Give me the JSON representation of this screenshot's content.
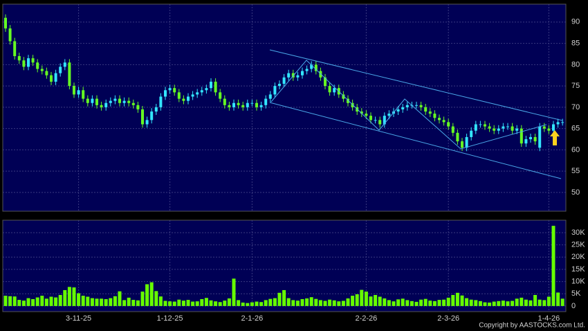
{
  "chart_data": [
    {
      "type": "candlestick",
      "up_color": "#33e6ff",
      "down_color": "#66ff22",
      "ylim": [
        45.6,
        94.2
      ],
      "yticks": [
        50,
        55,
        60,
        65,
        70,
        75,
        80,
        85,
        90
      ],
      "grid": true,
      "open": [
        91,
        88.5,
        85.5,
        82,
        81,
        79.5,
        81.5,
        80.5,
        79,
        78.5,
        77.5,
        76,
        78,
        79.5,
        80.5,
        75,
        73,
        74,
        72,
        71,
        72,
        70.5,
        70,
        71,
        71.5,
        72,
        71,
        71.5,
        71,
        70.5,
        69.5,
        66,
        67,
        69,
        70,
        72.5,
        74,
        74.5,
        73.5,
        72,
        71.5,
        72.5,
        73,
        73.5,
        74,
        74.5,
        76,
        73.5,
        72,
        70.5,
        70,
        71,
        70.5,
        70,
        71,
        71,
        70,
        70.5,
        72,
        73,
        75,
        75.5,
        77,
        78,
        77,
        77.5,
        78.5,
        79,
        80,
        78.5,
        77,
        75,
        73.5,
        74.5,
        73,
        72,
        71,
        70,
        69,
        68.5,
        68,
        67,
        67,
        66,
        68,
        68.5,
        69,
        69.5,
        70,
        70.5,
        70.5,
        70.5,
        70,
        69,
        68.5,
        67.5,
        67,
        66.5,
        65.5,
        64,
        62,
        60.5,
        63,
        64.5,
        66,
        66,
        65.5,
        65,
        64.5,
        65,
        65.5,
        65.5,
        64.5,
        65,
        61.5,
        62.5,
        63,
        60.5,
        65.5,
        65,
        64.5,
        66,
        66.5
      ],
      "high": [
        91.8,
        89.3,
        86.3,
        82.8,
        81.8,
        82.3,
        82.3,
        81.3,
        79.8,
        79.3,
        78.3,
        78.8,
        80.3,
        81.3,
        81.3,
        75.8,
        74.8,
        74.8,
        72.8,
        72.8,
        72.8,
        71.3,
        71.8,
        72.3,
        72.8,
        72.8,
        72.3,
        72.3,
        71.8,
        71.3,
        70.3,
        67.8,
        69.8,
        70.8,
        73.3,
        74.8,
        75.3,
        75.3,
        74.3,
        72.8,
        73.3,
        73.8,
        74.3,
        74.8,
        75.3,
        76.8,
        76.8,
        74.3,
        72.8,
        71.3,
        71.8,
        71.8,
        71.3,
        71.8,
        71.8,
        71.8,
        71.3,
        72.8,
        73.8,
        75.8,
        76.3,
        77.8,
        78.8,
        78.8,
        78.3,
        79.3,
        79.8,
        80.8,
        80.8,
        79.3,
        77.8,
        75.8,
        75.3,
        75.3,
        73.8,
        72.8,
        71.8,
        70.8,
        69.8,
        69.3,
        68.8,
        67.8,
        67.8,
        68.8,
        69.3,
        69.8,
        70.3,
        70.8,
        71.3,
        71.3,
        71.3,
        71.3,
        70.8,
        69.8,
        69.3,
        68.3,
        67.8,
        67.3,
        66.3,
        64.8,
        62.8,
        63.8,
        65.3,
        66.8,
        66.8,
        66.8,
        66.3,
        65.8,
        65.8,
        66.3,
        66.3,
        66.3,
        65.8,
        65.8,
        63.3,
        63.8,
        63.8,
        66.3,
        66.3,
        65.8,
        66.8,
        67.3,
        67.3
      ],
      "low": [
        87.7,
        84.7,
        81.2,
        80.2,
        78.7,
        78.7,
        79.7,
        78.2,
        77.7,
        76.7,
        75.2,
        75.2,
        77.2,
        78.7,
        74.2,
        72.2,
        72.2,
        71.2,
        70.2,
        70.2,
        69.7,
        69.2,
        69.2,
        70.2,
        70.7,
        70.2,
        70.2,
        70.2,
        69.7,
        68.7,
        65.2,
        65.2,
        66.2,
        68.2,
        69.2,
        71.7,
        73.2,
        72.7,
        71.2,
        70.7,
        70.7,
        71.7,
        72.2,
        72.7,
        73.2,
        73.7,
        72.7,
        71.2,
        69.7,
        69.2,
        69.2,
        69.7,
        69.2,
        69.2,
        70.2,
        69.2,
        69.2,
        69.7,
        71.2,
        72.2,
        74.2,
        74.7,
        76.2,
        76.2,
        76.2,
        76.7,
        77.7,
        78.2,
        77.7,
        76.2,
        74.2,
        72.7,
        72.7,
        72.2,
        71.2,
        70.2,
        69.2,
        68.2,
        67.7,
        67.2,
        66.2,
        66.2,
        65.2,
        65.2,
        67.2,
        67.7,
        68.2,
        68.7,
        69.2,
        69.7,
        69.7,
        69.2,
        68.2,
        67.7,
        66.7,
        66.2,
        65.7,
        64.7,
        63.2,
        61.2,
        59.7,
        59.7,
        62.2,
        63.7,
        65.2,
        64.7,
        64.2,
        63.7,
        63.7,
        64.2,
        64.7,
        63.7,
        63.7,
        60.7,
        60.7,
        61.7,
        61.2,
        59.7,
        64.2,
        63.7,
        63.7,
        65.2,
        65.7
      ],
      "close": [
        88.5,
        85.5,
        82,
        81,
        79.5,
        81.5,
        80.5,
        79,
        78.5,
        77.5,
        76,
        78,
        79.5,
        80.5,
        75,
        73,
        74,
        72,
        71,
        72,
        70.5,
        70,
        71,
        71.5,
        72,
        71,
        71.5,
        71,
        70.5,
        69.5,
        66,
        67,
        69,
        70,
        72.5,
        74,
        74.5,
        73.5,
        72,
        71.5,
        72.5,
        73,
        73.5,
        74,
        74.5,
        76,
        73.5,
        72,
        70.5,
        70,
        71,
        70.5,
        70,
        71,
        71,
        70,
        70.5,
        72,
        73,
        75,
        75.5,
        77,
        78,
        77,
        77.5,
        78.5,
        79,
        80,
        78.5,
        77,
        75,
        73.5,
        74.5,
        73,
        72,
        71,
        70,
        69,
        68.5,
        68,
        67,
        67,
        66,
        68,
        68.5,
        69,
        69.5,
        70,
        70.5,
        70.5,
        70.5,
        70,
        69,
        68.5,
        67.5,
        67,
        66.5,
        65.5,
        64,
        62,
        60.5,
        63,
        64.5,
        66,
        66,
        65.5,
        65,
        64.5,
        65,
        65.5,
        65.5,
        64.5,
        65,
        61.5,
        62.5,
        63,
        62,
        65.5,
        65,
        64.5,
        66,
        66.5,
        66.5
      ]
    },
    {
      "type": "bar",
      "color": "#66ff00",
      "ylim": [
        -2300,
        35100
      ],
      "yticks": [
        0,
        {
          "value": 5000,
          "label": "5K"
        },
        {
          "value": 10000,
          "label": "10K"
        },
        {
          "value": 15000,
          "label": "15K"
        },
        {
          "value": 20000,
          "label": "20K"
        },
        {
          "value": 25000,
          "label": "25K"
        },
        {
          "value": 30000,
          "label": "30K"
        }
      ],
      "grid": true,
      "categories": [
        null,
        null,
        null,
        null,
        null,
        null,
        null,
        null,
        null,
        null,
        null,
        null,
        null,
        null,
        null,
        null,
        "3-11-25",
        null,
        null,
        null,
        null,
        null,
        null,
        null,
        null,
        null,
        null,
        null,
        null,
        null,
        null,
        null,
        null,
        null,
        null,
        null,
        "1-12-25",
        null,
        null,
        null,
        null,
        null,
        null,
        null,
        null,
        null,
        null,
        null,
        null,
        null,
        null,
        null,
        null,
        null,
        "2-1-26",
        null,
        null,
        null,
        null,
        null,
        null,
        null,
        null,
        null,
        null,
        null,
        null,
        null,
        null,
        null,
        null,
        null,
        null,
        null,
        null,
        null,
        null,
        null,
        null,
        "2-2-26",
        null,
        null,
        null,
        null,
        null,
        null,
        null,
        null,
        null,
        null,
        null,
        null,
        null,
        null,
        null,
        null,
        null,
        "2-3-26",
        null,
        null,
        null,
        null,
        null,
        null,
        null,
        null,
        null,
        null,
        null,
        null,
        null,
        null,
        null,
        null,
        null,
        null,
        null,
        null,
        null,
        "1-4-26",
        null,
        null,
        null
      ],
      "values": [
        4200,
        4000,
        3900,
        2500,
        2200,
        3200,
        2800,
        3500,
        4200,
        3000,
        3800,
        3500,
        4500,
        6500,
        7800,
        7600,
        5200,
        4200,
        3800,
        3200,
        3000,
        3000,
        2800,
        3200,
        4000,
        6000,
        2400,
        3400,
        2500,
        2300,
        5900,
        8900,
        9700,
        6100,
        3900,
        2100,
        1900,
        1800,
        2600,
        2200,
        2500,
        1800,
        1900,
        2800,
        3300,
        2300,
        1900,
        1600,
        2200,
        3100,
        11200,
        2400,
        1400,
        1200,
        1500,
        1800,
        1600,
        2400,
        2900,
        3200,
        5400,
        6500,
        3200,
        2400,
        2200,
        2800,
        3100,
        3600,
        2900,
        2400,
        2100,
        2600,
        2300,
        1900,
        2100,
        3100,
        4200,
        4800,
        6600,
        5900,
        3900,
        4500,
        3800,
        3100,
        2400,
        1900,
        2700,
        3000,
        2400,
        2000,
        1700,
        2600,
        2900,
        2200,
        2000,
        2500,
        2600,
        3400,
        4500,
        5400,
        4300,
        3200,
        2600,
        2400,
        2000,
        1500,
        1400,
        1800,
        2000,
        2200,
        1900,
        2100,
        3000,
        3400,
        2600,
        2300,
        4500,
        2600,
        2400,
        3800,
        32800,
        5500,
        3000
      ]
    }
  ],
  "footer": "Copyright by AASTOCKS.com Ltd."
}
